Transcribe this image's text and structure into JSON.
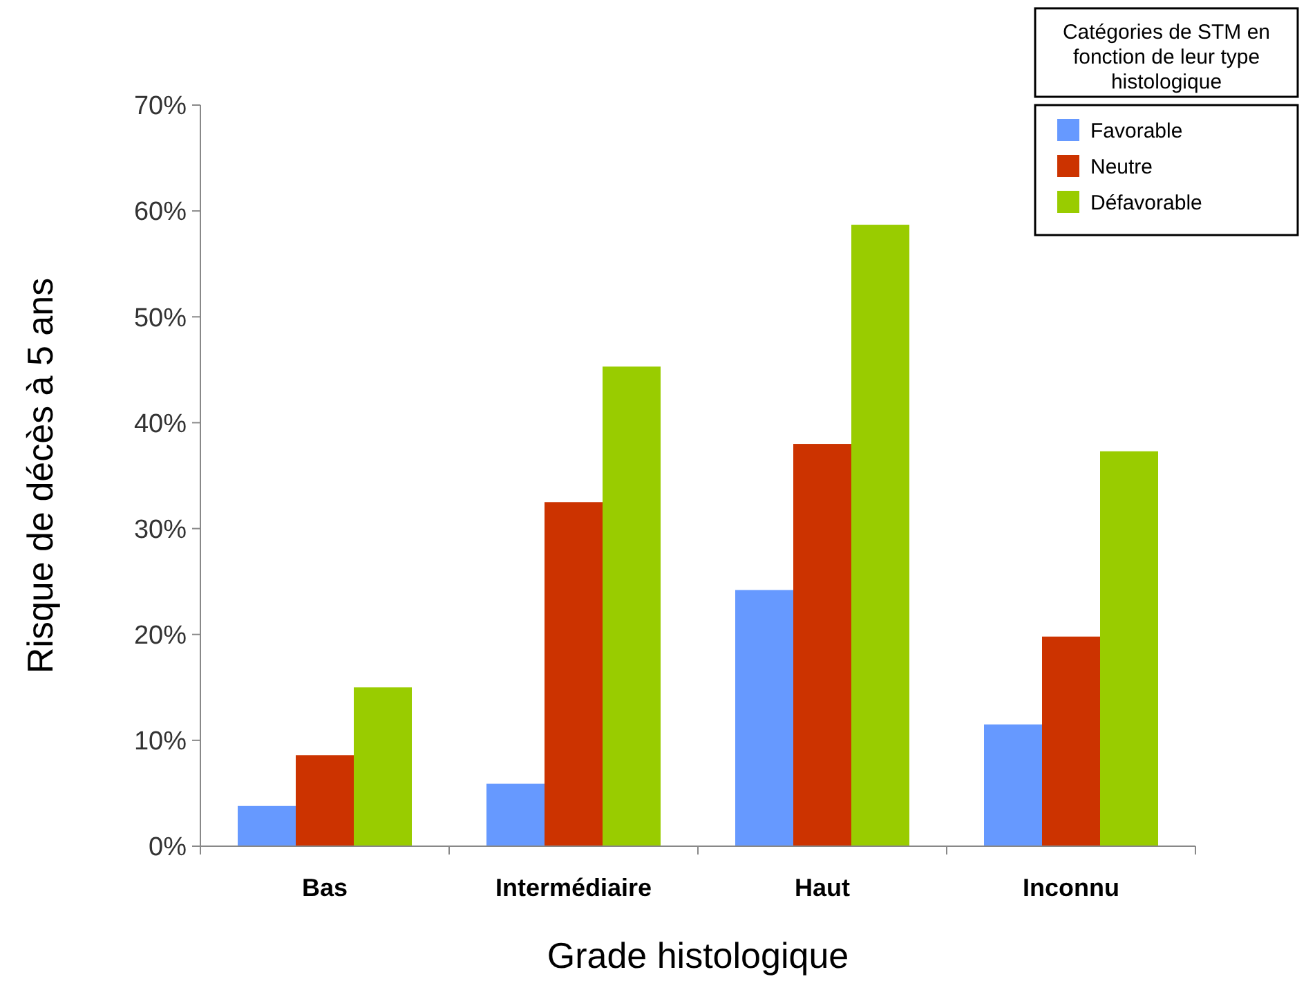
{
  "chart_data": {
    "type": "bar",
    "xlabel": "Grade histologique",
    "ylabel": "Risque de décès à 5 ans",
    "legend_title": "Catégories de STM en fonction de leur type histologique",
    "categories": [
      "Bas",
      "Intermédiaire",
      "Haut",
      "Inconnu"
    ],
    "series": [
      {
        "name": "Favorable",
        "color": "#6699ff",
        "values": [
          3.8,
          5.9,
          24.2,
          11.5
        ]
      },
      {
        "name": "Neutre",
        "color": "#cc3300",
        "values": [
          8.6,
          32.5,
          38,
          19.8
        ]
      },
      {
        "name": "Défavorable",
        "color": "#99cc00",
        "values": [
          15,
          45.3,
          58.7,
          37.3
        ]
      }
    ],
    "ylim": [
      0,
      70
    ],
    "yticks": [
      {
        "value": 0,
        "label": "0%"
      },
      {
        "value": 10,
        "label": "10%"
      },
      {
        "value": 20,
        "label": "20%"
      },
      {
        "value": 30,
        "label": "30%"
      },
      {
        "value": 40,
        "label": "40%"
      },
      {
        "value": 50,
        "label": "50%"
      },
      {
        "value": 60,
        "label": "60%"
      },
      {
        "value": 70,
        "label": "70%"
      }
    ],
    "legend": "top right"
  }
}
